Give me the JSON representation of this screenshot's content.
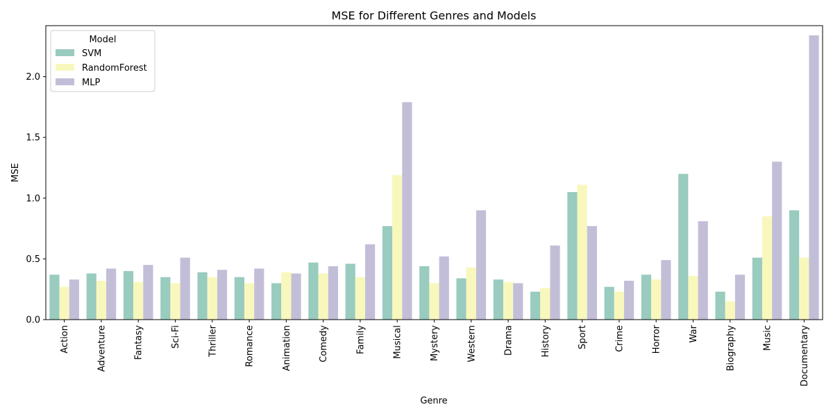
{
  "chart_data": {
    "type": "bar",
    "title": "MSE for Different Genres and Models",
    "xlabel": "Genre",
    "ylabel": "MSE",
    "ylim": [
      0,
      2.42
    ],
    "yticks": [
      0.0,
      0.5,
      1.0,
      1.5,
      2.0
    ],
    "ytick_labels": [
      "0.0",
      "0.5",
      "1.0",
      "1.5",
      "2.0"
    ],
    "legend_title": "Model",
    "legend_position": "top-left",
    "grid": false,
    "categories": [
      "Action",
      "Adventure",
      "Fantasy",
      "Sci-Fi",
      "Thriller",
      "Romance",
      "Animation",
      "Comedy",
      "Family",
      "Musical",
      "Mystery",
      "Western",
      "Drama",
      "History",
      "Sport",
      "Crime",
      "Horror",
      "War",
      "Biography",
      "Music",
      "Documentary"
    ],
    "series": [
      {
        "name": "SVM",
        "color": "#99cbbf",
        "values": [
          0.37,
          0.38,
          0.4,
          0.35,
          0.39,
          0.35,
          0.3,
          0.47,
          0.46,
          0.77,
          0.44,
          0.34,
          0.33,
          0.23,
          1.05,
          0.27,
          0.37,
          1.2,
          0.23,
          0.51,
          0.9
        ]
      },
      {
        "name": "RandomForest",
        "color": "#f8f8bd",
        "values": [
          0.27,
          0.32,
          0.31,
          0.3,
          0.35,
          0.3,
          0.39,
          0.38,
          0.35,
          1.19,
          0.3,
          0.43,
          0.31,
          0.26,
          1.11,
          0.23,
          0.33,
          0.36,
          0.15,
          0.85,
          0.51
        ]
      },
      {
        "name": "MLP",
        "color": "#c3bed8",
        "values": [
          0.33,
          0.42,
          0.45,
          0.51,
          0.41,
          0.42,
          0.38,
          0.44,
          0.62,
          1.79,
          0.52,
          0.9,
          0.3,
          0.61,
          0.77,
          0.32,
          0.49,
          0.81,
          0.37,
          1.3,
          2.34
        ]
      }
    ]
  }
}
